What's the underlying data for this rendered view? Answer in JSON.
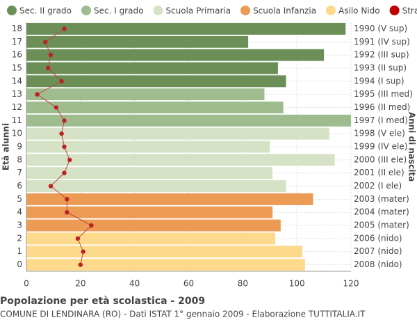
{
  "chart_data": {
    "type": "bar",
    "orientation": "horizontal",
    "stacked": true,
    "title": "Popolazione per età scolastica - 2009",
    "subtitle": "COMUNE DI LENDINARA (RO) - Dati ISTAT 1° gennaio 2009 - Elaborazione TUTTITALIA.IT",
    "y_label": "Età alunni",
    "y2_label": "Anni di nascita",
    "categories": [
      "18",
      "17",
      "16",
      "15",
      "14",
      "13",
      "12",
      "11",
      "10",
      "9",
      "8",
      "7",
      "6",
      "5",
      "4",
      "3",
      "2",
      "1",
      "0"
    ],
    "right_labels": [
      "1990 (V sup)",
      "1991 (IV sup)",
      "1992 (III sup)",
      "1993 (II sup)",
      "1994 (I sup)",
      "1995 (III med)",
      "1996 (II med)",
      "1997 (I med)",
      "1998 (V ele)",
      "1999 (IV ele)",
      "2000 (III ele)",
      "2001 (II ele)",
      "2002 (I ele)",
      "2003 (mater)",
      "2004 (mater)",
      "2005 (mater)",
      "2006 (nido)",
      "2007 (nido)",
      "2008 (nido)"
    ],
    "series": [
      {
        "name": "Sec. II grado",
        "color": "#6b8f57",
        "values": [
          118,
          82,
          110,
          93,
          96,
          null,
          null,
          null,
          null,
          null,
          null,
          null,
          null,
          null,
          null,
          null,
          null,
          null,
          null
        ]
      },
      {
        "name": "Sec. I grado",
        "color": "#9fbc8e",
        "values": [
          null,
          null,
          null,
          null,
          null,
          88,
          95,
          120,
          null,
          null,
          null,
          null,
          null,
          null,
          null,
          null,
          null,
          null,
          null
        ]
      },
      {
        "name": "Scuola Primaria",
        "color": "#d6e2c6",
        "values": [
          null,
          null,
          null,
          null,
          null,
          null,
          null,
          null,
          112,
          90,
          114,
          91,
          96,
          null,
          null,
          null,
          null,
          null,
          null
        ]
      },
      {
        "name": "Scuola Infanzia",
        "color": "#ec9b55",
        "values": [
          null,
          null,
          null,
          null,
          null,
          null,
          null,
          null,
          null,
          null,
          null,
          null,
          null,
          106,
          91,
          94,
          null,
          null,
          null
        ]
      },
      {
        "name": "Asilo Nido",
        "color": "#fdd98c",
        "values": [
          null,
          null,
          null,
          null,
          null,
          null,
          null,
          null,
          null,
          null,
          null,
          null,
          null,
          null,
          null,
          null,
          92,
          102,
          103
        ]
      },
      {
        "name": "Stranieri",
        "color": "#c00000",
        "type": "line",
        "values": [
          14,
          7,
          9,
          8,
          13,
          4,
          11,
          14,
          13,
          14,
          16,
          14,
          9,
          15,
          15,
          24,
          19,
          21,
          20
        ]
      }
    ],
    "xlim": [
      0,
      120
    ],
    "xticks": [
      0,
      20,
      40,
      60,
      80,
      100,
      120
    ],
    "grid": true
  }
}
